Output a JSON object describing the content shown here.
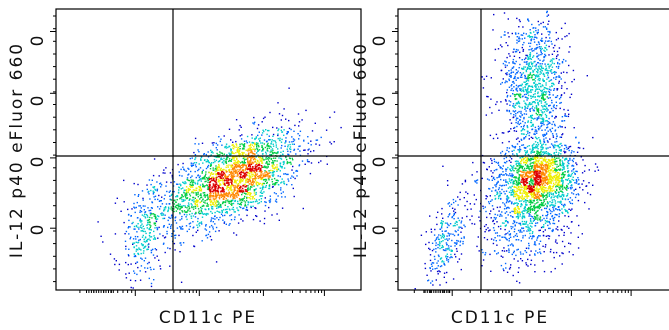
{
  "chart_data": [
    {
      "type": "scatter",
      "title": "",
      "xlabel": "CD11c PE",
      "ylabel": "IL-12 p40 eFluor 660",
      "ytick_labels": [
        "0",
        "0",
        "0",
        "0"
      ],
      "x_scale": "biexponential",
      "y_scale": "biexponential",
      "gate": {
        "x": 0.38,
        "y": 0.48
      },
      "xlim": [
        0,
        1
      ],
      "ylim": [
        0,
        1
      ],
      "density_colors": [
        "#0000cc",
        "#0066ff",
        "#00cccc",
        "#00cc44",
        "#eeee00",
        "#ff8800",
        "#dd0000"
      ],
      "populations": [
        {
          "cx": 0.58,
          "cy": 0.4,
          "sx": 0.11,
          "sy": 0.085,
          "n": 2300,
          "corr": 0.55
        },
        {
          "cx": 0.29,
          "cy": 0.21,
          "sx": 0.045,
          "sy": 0.09,
          "n": 320,
          "corr": 0.2
        }
      ]
    },
    {
      "type": "scatter",
      "title": "",
      "xlabel": "CD11c PE",
      "ylabel": "IL-12 p40 eFluor 660",
      "ytick_labels": [
        "0",
        "0",
        "0",
        "0"
      ],
      "x_scale": "biexponential",
      "y_scale": "biexponential",
      "gate": {
        "x": 0.31,
        "y": 0.48
      },
      "xlim": [
        0,
        1
      ],
      "ylim": [
        0,
        1
      ],
      "density_colors": [
        "#0000cc",
        "#0066ff",
        "#00cccc",
        "#00cc44",
        "#eeee00",
        "#ff8800",
        "#dd0000"
      ],
      "populations": [
        {
          "cx": 0.52,
          "cy": 0.4,
          "sx": 0.07,
          "sy": 0.06,
          "n": 1300,
          "corr": 0.1
        },
        {
          "cx": 0.5,
          "cy": 0.72,
          "sx": 0.06,
          "sy": 0.13,
          "n": 1100,
          "corr": 0.0
        },
        {
          "cx": 0.47,
          "cy": 0.3,
          "sx": 0.09,
          "sy": 0.11,
          "n": 900,
          "corr": 0.15
        },
        {
          "cx": 0.18,
          "cy": 0.18,
          "sx": 0.04,
          "sy": 0.09,
          "n": 250,
          "corr": 0.55
        }
      ]
    }
  ]
}
